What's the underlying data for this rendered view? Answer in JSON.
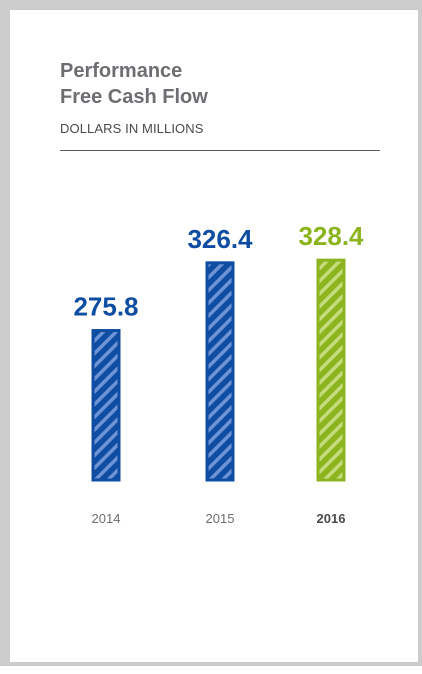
{
  "header": {
    "title_line1": "Performance",
    "title_line2": "Free Cash Flow",
    "subtitle": "DOLLARS IN MILLIONS"
  },
  "colors": {
    "blue": "#0f4da3",
    "blue_dark": "#0b3c87",
    "green": "#8cb41e",
    "green_dark": "#6f9416",
    "label_gray": "#6d6e71",
    "highlight_label": "#4a4a4a"
  },
  "chart_data": {
    "type": "bar",
    "title": "Performance Free Cash Flow",
    "subtitle": "DOLLARS IN MILLIONS",
    "categories": [
      "2014",
      "2015",
      "2016"
    ],
    "values": [
      275.8,
      326.4,
      328.4
    ],
    "value_labels": [
      "275.8",
      "326.4",
      "328.4"
    ],
    "highlight": "2016",
    "xlabel": "",
    "ylabel": "",
    "grid": false,
    "legend": "none"
  }
}
